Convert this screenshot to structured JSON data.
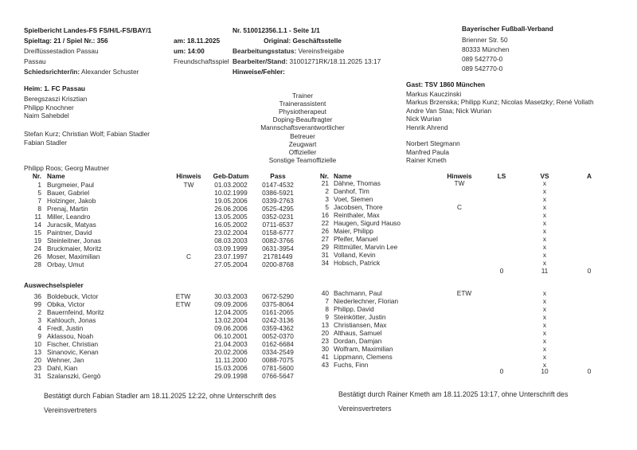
{
  "header": {
    "report_title": "Spielbericht Landes-FS FS/H/L-FS/BAY/1",
    "matchday": "Spieltag: 21 / Spiel Nr.: 356",
    "date": "am: 18.11.2025",
    "venue": "Dreiflüssestadion Passau",
    "time": "um: 14:00",
    "city": "Passau",
    "match_type": "Freundschaftsspiel",
    "referee_label": "Schiedsrichter/in:",
    "referee": "Alexander Schuster",
    "number": "Nr. 510012356.1.1 - Seite 1/1",
    "original": "Original: Geschäftsstelle",
    "status_label": "Bearbeitungsstatus:",
    "status": "Vereinsfreigabe",
    "editor_label": "Bearbeiter/Stand:",
    "editor": "31001271RK/18.11.2025 13:17",
    "notes_label": "Hinweise/Fehler:",
    "federation": "Bayerischer Fußball-Verband",
    "street": "Brienner Str. 50",
    "zip_city": "80333 München",
    "phone": "089 542770-0",
    "fax": "089 542770-0"
  },
  "roles": [
    "Trainer",
    "Trainerassistent",
    "Physiotherapeut",
    "Doping-Beauftragter",
    "Mannschaftsverantwortlicher",
    "Betreuer",
    "Zeugwart",
    "Offizieller",
    "Sonstige Teamoffizielle"
  ],
  "home": {
    "title": "Heim: 1. FC Passau",
    "staff": [
      "Beregszaszi Krisztian",
      "Philipp Knochner",
      "Naim Sahebdel",
      "",
      "Stefan Kurz; Christian Wolf; Fabian Stadler",
      "Fabian Stadler",
      "",
      "",
      "Philipp Roos; Georg Mautner"
    ]
  },
  "guest": {
    "title": "Gast: TSV 1860 München",
    "staff": [
      "Markus Kauczinski",
      "Markus Brzenska; Philipp Kunz; Nicolas Masetzky; René Vollath",
      "Andre Van Staa; Nick Wurian",
      "Nick Wurian",
      "Henrik Ahrend",
      "",
      "Norbert Stegmann",
      "Manfred Paula",
      "Rainer Kmeth"
    ]
  },
  "columns": {
    "nr": "Nr.",
    "name": "Name",
    "hint": "Hinweis",
    "dob": "Geb-Datum",
    "pass": "Pass",
    "ls": "LS",
    "vs": "VS",
    "a": "A"
  },
  "home_starters": [
    [
      "1",
      "Burgmeier, Paul",
      "TW",
      "01.03.2002",
      "0147-4532"
    ],
    [
      "5",
      "Bauer, Gabriel",
      "",
      "10.02.1999",
      "0386-5921"
    ],
    [
      "7",
      "Holzinger, Jakob",
      "",
      "19.05.2006",
      "0339-2763"
    ],
    [
      "8",
      "Prenaj, Martin",
      "",
      "26.06.2006",
      "0525-4295"
    ],
    [
      "11",
      "Miller, Leandro",
      "",
      "13.05.2005",
      "0352-0231"
    ],
    [
      "14",
      "Juracsik, Matyas",
      "",
      "16.05.2002",
      "0711-6537"
    ],
    [
      "15",
      "Paintner, David",
      "",
      "23.02.2004",
      "0158-6777"
    ],
    [
      "19",
      "Steinleitner, Jonas",
      "",
      "08.03.2003",
      "0082-3766"
    ],
    [
      "24",
      "Bruckmaier, Moritz",
      "",
      "03.09.1999",
      "0631-3954"
    ],
    [
      "26",
      "Moser, Maximilian",
      "C",
      "23.07.1997",
      "21781449"
    ],
    [
      "28",
      "Orbay, Umut",
      "",
      "27.05.2004",
      "0200-8768"
    ]
  ],
  "guest_starters": [
    [
      "21",
      "Dähne, Thomas",
      "TW",
      "",
      "x",
      ""
    ],
    [
      "2",
      "Danhof, Tim",
      "",
      "",
      "x",
      ""
    ],
    [
      "3",
      "Voet, Siemen",
      "",
      "",
      "x",
      ""
    ],
    [
      "5",
      "Jacobsen, Thore",
      "C",
      "",
      "x",
      ""
    ],
    [
      "16",
      "Reinthaler, Max",
      "",
      "",
      "x",
      ""
    ],
    [
      "22",
      "Haugen, Sigurd Hauso",
      "",
      "",
      "x",
      ""
    ],
    [
      "26",
      "Maier, Philipp",
      "",
      "",
      "x",
      ""
    ],
    [
      "27",
      "Pfeifer, Manuel",
      "",
      "",
      "x",
      ""
    ],
    [
      "29",
      "Rittmüller, Marvin Lee",
      "",
      "",
      "x",
      ""
    ],
    [
      "31",
      "Volland, Kevin",
      "",
      "",
      "x",
      ""
    ],
    [
      "34",
      "Hobsch, Patrick",
      "",
      "",
      "x",
      ""
    ]
  ],
  "starters_totals": {
    "ls": "0",
    "vs": "11",
    "a": "0"
  },
  "subs_title": "Auswechselspieler",
  "home_subs": [
    [
      "36",
      "Boldebuck, Victor",
      "ETW",
      "30.03.2003",
      "0672-5290"
    ],
    [
      "99",
      "Obika, Victor",
      "ETW",
      "09.09.2006",
      "0375-8064"
    ],
    [
      "2",
      "Bauernfeind, Moritz",
      "",
      "12.04.2005",
      "0161-2065"
    ],
    [
      "3",
      "Kahlouch, Jonas",
      "",
      "13.02.2004",
      "0242-3136"
    ],
    [
      "4",
      "Fredl, Justin",
      "",
      "09.06.2006",
      "0359-4362"
    ],
    [
      "9",
      "Aklassou, Noah",
      "",
      "06.10.2001",
      "0052-0370"
    ],
    [
      "10",
      "Fischer, Christian",
      "",
      "21.04.2003",
      "0162-6684"
    ],
    [
      "13",
      "Sinanovic, Kenan",
      "",
      "20.02.2006",
      "0334-2549"
    ],
    [
      "20",
      "Wehner, Jan",
      "",
      "11.11.2000",
      "0088-7075"
    ],
    [
      "23",
      "Dahl, Kian",
      "",
      "15.03.2006",
      "0781-5600"
    ],
    [
      "31",
      "Szalanszki, Gergö",
      "",
      "29.09.1998",
      "0766-5647"
    ]
  ],
  "guest_subs": [
    [
      "40",
      "Bachmann, Paul",
      "ETW",
      "",
      "x",
      ""
    ],
    [
      "7",
      "Niederlechner, Florian",
      "",
      "",
      "x",
      ""
    ],
    [
      "8",
      "Philipp, David",
      "",
      "",
      "x",
      ""
    ],
    [
      "9",
      "Steinkötter, Justin",
      "",
      "",
      "x",
      ""
    ],
    [
      "13",
      "Christiansen, Max",
      "",
      "",
      "x",
      ""
    ],
    [
      "20",
      "Althaus, Samuel",
      "",
      "",
      "x",
      ""
    ],
    [
      "23",
      "Dordan, Damjan",
      "",
      "",
      "x",
      ""
    ],
    [
      "30",
      "Wolfram, Maximilian",
      "",
      "",
      "x",
      ""
    ],
    [
      "41",
      "Lippmann, Clemens",
      "",
      "",
      "x",
      ""
    ],
    [
      "43",
      "Fuchs, Finn",
      "",
      "",
      "x",
      ""
    ]
  ],
  "subs_totals": {
    "ls": "0",
    "vs": "10",
    "a": "0"
  },
  "confirmations": {
    "home_line1": "Bestätigt durch Fabian Stadler am 18.11.2025 12:22, ohne Unterschrift des",
    "home_line2": "Vereinsvertreters",
    "guest_line1": "Bestätigt durch Rainer Kmeth am 18.11.2025 13:17, ohne Unterschrift des",
    "guest_line2": "Vereinsvertreters"
  }
}
